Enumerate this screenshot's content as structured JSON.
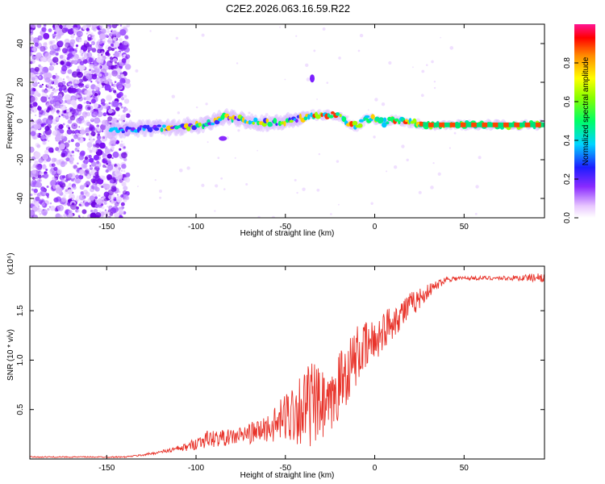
{
  "figure": {
    "title": "C2E2.2026.063.16.59.R22"
  },
  "chart_data": [
    {
      "type": "heatmap",
      "xlabel": "Height of straight line (km)",
      "ylabel": "Frequency (Hz)",
      "xlim": [
        -193,
        95
      ],
      "ylim": [
        -50,
        50
      ],
      "xticks": [
        -150,
        -100,
        -50,
        0,
        50
      ],
      "xtick_labels": [
        "-150",
        "-100",
        "-50",
        "0",
        "50"
      ],
      "yticks": [
        -40,
        -20,
        0,
        20,
        40
      ],
      "ytick_labels": [
        "-40",
        "-20",
        "0",
        "20",
        "40"
      ],
      "colorbar": {
        "label": "Normalized spectral amplitude",
        "range": [
          0,
          1
        ],
        "ticks": [
          0.0,
          0.2,
          0.4,
          0.6,
          0.8
        ],
        "tick_labels": [
          "0.0",
          "0.2",
          "0.4",
          "0.6",
          "0.8"
        ]
      },
      "ridge": {
        "x": [
          -148,
          -135,
          -120,
          -105,
          -95,
          -85,
          -75,
          -65,
          -55,
          -45,
          -35,
          -28,
          -20,
          -15,
          -10,
          -5,
          0,
          5,
          10,
          20,
          30,
          40,
          50,
          60,
          70,
          80,
          95
        ],
        "freq": [
          -5,
          -4,
          -3.5,
          -3,
          -2,
          2,
          1,
          -1,
          -1,
          0.5,
          3,
          3,
          3,
          -1,
          -3,
          1,
          1,
          -1,
          1,
          -1,
          -2,
          -2,
          -2,
          -2,
          -2,
          -2,
          -2
        ]
      }
    },
    {
      "type": "line",
      "xlabel": "Height of straight line (km)",
      "ylabel": "SNR (10 * v/v)",
      "y_scale_label": "(x10⁴)",
      "xlim": [
        -193,
        95
      ],
      "ylim": [
        0,
        1.95
      ],
      "xticks": [
        -150,
        -100,
        -50,
        0,
        50
      ],
      "xtick_labels": [
        "-150",
        "-100",
        "-50",
        "0",
        "50"
      ],
      "yticks": [
        0.5,
        1.0,
        1.5
      ],
      "ytick_labels": [
        "0.5",
        "1.0",
        "1.5"
      ],
      "series": [
        {
          "name": "SNR",
          "color": "#e8332a",
          "trend_x": [
            -193,
            -140,
            -130,
            -120,
            -105,
            -95,
            -80,
            -65,
            -55,
            -45,
            -35,
            -25,
            -20,
            -10,
            0,
            10,
            20,
            30,
            40,
            50,
            60,
            70,
            80,
            95
          ],
          "trend_y": [
            0.02,
            0.02,
            0.04,
            0.07,
            0.12,
            0.2,
            0.22,
            0.28,
            0.35,
            0.5,
            0.55,
            0.5,
            0.75,
            1.05,
            1.2,
            1.4,
            1.55,
            1.7,
            1.82,
            1.83,
            1.83,
            1.83,
            1.83,
            1.84
          ],
          "noise_x": [
            -193,
            -140,
            -130,
            -120,
            -105,
            -95,
            -80,
            -65,
            -55,
            -45,
            -35,
            -25,
            -20,
            -10,
            0,
            10,
            20,
            30,
            40,
            50,
            60,
            70,
            80,
            95
          ],
          "noise_y": [
            0.006,
            0.006,
            0.01,
            0.015,
            0.04,
            0.09,
            0.08,
            0.12,
            0.18,
            0.35,
            0.45,
            0.3,
            0.35,
            0.3,
            0.22,
            0.18,
            0.14,
            0.07,
            0.03,
            0.02,
            0.02,
            0.02,
            0.03,
            0.05
          ]
        }
      ]
    }
  ],
  "colors": {
    "ridge_low": "#7b1fff",
    "snr_line": "#e8332a"
  }
}
